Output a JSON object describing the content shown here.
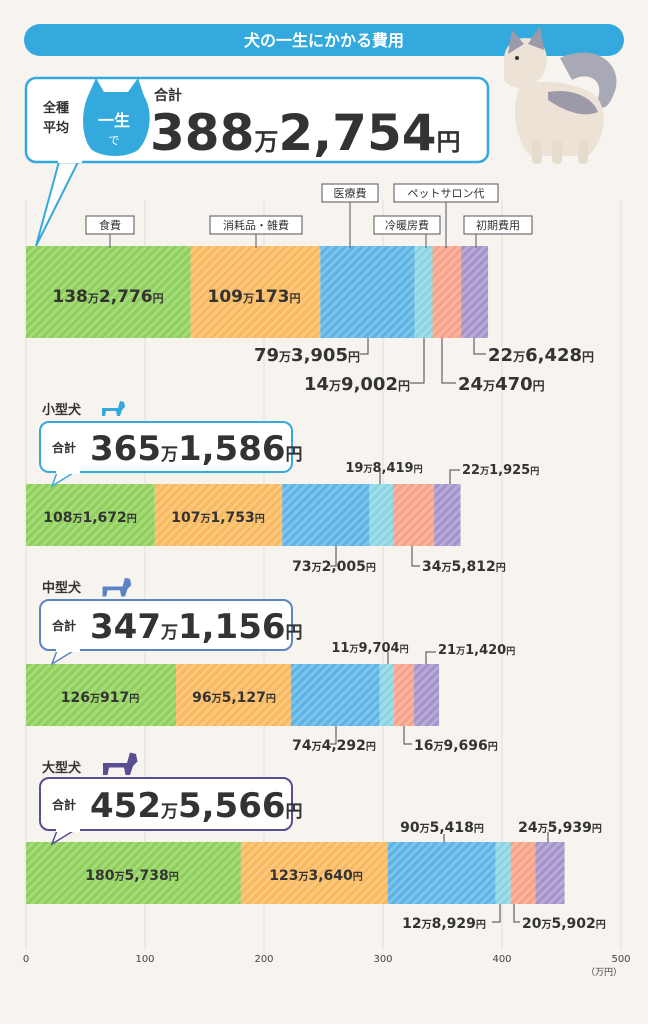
{
  "header": {
    "title": "犬の一生にかかる費用"
  },
  "avg": {
    "left_label_1": "全種",
    "left_label_2": "平均",
    "badge_1": "一生",
    "badge_2": "で",
    "total_label": "合計"
  },
  "groups": [
    {
      "label": "",
      "total": {
        "man": "388",
        "rest": "2,754"
      }
    },
    {
      "label": "小型犬",
      "total": {
        "man": "365",
        "rest": "1,586"
      }
    },
    {
      "label": "中型犬",
      "total": {
        "man": "347",
        "rest": "1,156"
      }
    },
    {
      "label": "大型犬",
      "total": {
        "man": "452",
        "rest": "5,566"
      }
    }
  ],
  "units": {
    "man": "万",
    "yen": "円",
    "axis_unit": "（万円）"
  },
  "chart_data": {
    "type": "bar",
    "orientation": "horizontal-stacked",
    "categories": [
      "全種平均",
      "小型犬",
      "中型犬",
      "大型犬"
    ],
    "series": [
      {
        "name": "食費",
        "color": "#8dcf59",
        "values": [
          138.2776,
          108.1672,
          126.0917,
          180.5738
        ],
        "labels": [
          {
            "m": "138",
            "r": "2,776"
          },
          {
            "m": "108",
            "r": "1,672"
          },
          {
            "m": "126",
            "r": "917"
          },
          {
            "m": "180",
            "r": "5,738"
          }
        ]
      },
      {
        "name": "消耗品・雑費",
        "color": "#f9b85c",
        "values": [
          109.0173,
          107.1753,
          96.5127,
          123.364
        ],
        "labels": [
          {
            "m": "109",
            "r": "173"
          },
          {
            "m": "107",
            "r": "1,753"
          },
          {
            "m": "96",
            "r": "5,127"
          },
          {
            "m": "123",
            "r": "3,640"
          }
        ]
      },
      {
        "name": "医療費",
        "color": "#5bb3e6",
        "values": [
          79.3905,
          73.2005,
          74.4292,
          90.5418
        ],
        "labels": [
          {
            "m": "79",
            "r": "3,905"
          },
          {
            "m": "73",
            "r": "2,005"
          },
          {
            "m": "74",
            "r": "4,292"
          },
          {
            "m": "90",
            "r": "5,418"
          }
        ]
      },
      {
        "name": "冷暖房費",
        "color": "#88d4e2",
        "values": [
          14.9002,
          19.8419,
          11.9704,
          12.8929
        ],
        "labels": [
          {
            "m": "14",
            "r": "9,002"
          },
          {
            "m": "19",
            "r": "8,419"
          },
          {
            "m": "11",
            "r": "9,704"
          },
          {
            "m": "12",
            "r": "8,929"
          }
        ]
      },
      {
        "name": "ペットサロン代",
        "color": "#f6a187",
        "values": [
          24.047,
          34.5812,
          16.9696,
          20.5902
        ],
        "labels": [
          {
            "m": "24",
            "r": "470"
          },
          {
            "m": "34",
            "r": "5,812"
          },
          {
            "m": "16",
            "r": "9,696"
          },
          {
            "m": "20",
            "r": "5,902"
          }
        ]
      },
      {
        "name": "初期費用",
        "color": "#a493cb",
        "values": [
          22.6428,
          22.1925,
          21.142,
          24.5939
        ],
        "labels": [
          {
            "m": "22",
            "r": "6,428"
          },
          {
            "m": "22",
            "r": "1,925"
          },
          {
            "m": "21",
            "r": "1,420"
          },
          {
            "m": "24",
            "r": "5,939"
          }
        ]
      }
    ],
    "xlim": [
      0,
      500
    ],
    "xticks": [
      "0",
      "100",
      "200",
      "300",
      "400",
      "500"
    ],
    "xlabel": "（万円）",
    "grid": true
  }
}
